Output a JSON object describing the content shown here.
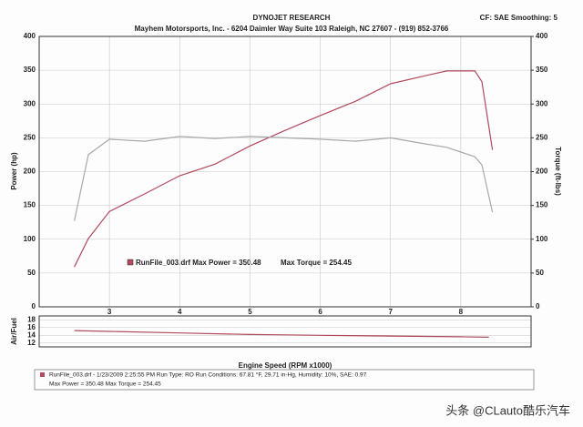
{
  "header": {
    "title": "DYNOJET RESEARCH",
    "subtitle": "Mayhem Motorsports, Inc. - 6204 Daimler Way Suite 103  Raleigh, NC  27607 - (919) 852-3766",
    "settings": "CF: SAE  Smoothing: 5"
  },
  "chart_data": [
    {
      "type": "line",
      "x_label": "Engine Speed (RPM x1000)",
      "y_label": "Power (hp)",
      "y2_label": "Torque (ft-lbs)",
      "x": [
        2.5,
        2.7,
        3,
        3.5,
        4,
        4.5,
        5,
        5.5,
        6,
        6.5,
        7,
        7.5,
        7.8,
        8.2,
        8.3,
        8.45
      ],
      "series": [
        {
          "name": "Power",
          "color": "#b04a5c",
          "values": [
            59,
            101,
            141,
            167,
            194,
            211,
            238,
            261,
            283,
            304,
            330,
            342,
            349,
            349,
            333,
            232
          ]
        },
        {
          "name": "Torque",
          "color": "#a8a8a8",
          "axis": "y2",
          "values": [
            127,
            225,
            248,
            245,
            252,
            249,
            252,
            250,
            248,
            245,
            250,
            241,
            236,
            222,
            210,
            140
          ]
        }
      ],
      "xlim": [
        2,
        9
      ],
      "xticks": [
        3,
        4,
        5,
        6,
        7,
        8
      ],
      "ylim": [
        0,
        400
      ],
      "yticks": [
        0,
        50,
        100,
        150,
        200,
        250,
        300,
        350,
        400
      ],
      "y2lim": [
        0,
        400
      ],
      "y2ticks": [
        0,
        50,
        100,
        150,
        200,
        250,
        300,
        350,
        400
      ],
      "grid": true,
      "annotations": [
        "RunFile_003.drf Max Power = 350.48",
        "Max Torque = 254.45"
      ]
    },
    {
      "type": "line",
      "y_label": "Air/Fuel",
      "x": [
        2.5,
        3,
        4,
        5,
        6,
        7,
        8,
        8.4
      ],
      "series": [
        {
          "name": "Air/Fuel",
          "color": "#b04a5c",
          "values": [
            15.2,
            15,
            14.6,
            14.2,
            14,
            13.8,
            13.6,
            13.5
          ]
        }
      ],
      "xlim": [
        2,
        9
      ],
      "ylim": [
        11,
        19
      ],
      "yticks": [
        12,
        14,
        16,
        18
      ],
      "grid": true
    }
  ],
  "footer": [
    "RunFile_003.drf - 1/23/2009 2:25:55 PM  Run Type: RO  Run Conditions: 67.81 °F, 29.71 in-Hg, Humidity: 10%, SAE: 0.97",
    "Max Power = 350.48   Max Torque = 254.45"
  ],
  "watermark": "头条 @CLauto酷乐汽车"
}
